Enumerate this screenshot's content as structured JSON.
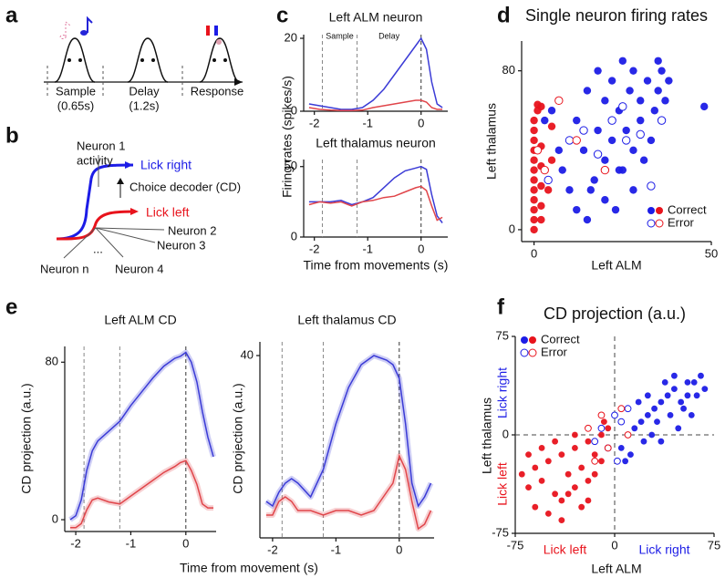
{
  "panel_labels": [
    "a",
    "b",
    "c",
    "d",
    "e",
    "f"
  ],
  "panel_a": {
    "epochs": [
      {
        "label": "Sample",
        "duration": "(0.65s)"
      },
      {
        "label": "Delay",
        "duration": "(1.2s)"
      },
      {
        "label": "Response"
      }
    ]
  },
  "panel_b": {
    "neuron_1": "Neuron 1",
    "activity": "activity",
    "lick_right": "Lick right",
    "decoder": "Choice decoder (CD)",
    "lick_left": "Lick left",
    "neurons": [
      "Neuron 2",
      "Neuron 3",
      "Neuron 4",
      "Neuron n"
    ],
    "ellipsis": "..."
  },
  "chart_data": [
    {
      "type": "line",
      "title": "Left ALM neuron",
      "ylabel": "Firing rates (spikes/s)",
      "annotations": [
        "Sample",
        "Delay"
      ],
      "x": [
        -2.1,
        -1.9,
        -1.7,
        -1.5,
        -1.3,
        -1.1,
        -0.9,
        -0.7,
        -0.5,
        -0.3,
        -0.1,
        0,
        0.1,
        0.2,
        0.3,
        0.4
      ],
      "xlim": [
        -2.2,
        0.5
      ],
      "xticks": [
        -2,
        -1,
        0
      ],
      "ylim": [
        0,
        21
      ],
      "yticks": [
        0,
        20
      ],
      "event_lines": [
        -1.85,
        -1.2,
        0
      ],
      "series": [
        {
          "color": "#3b3bd6",
          "values": [
            2,
            1.5,
            1,
            0.5,
            0.5,
            1,
            3,
            6,
            10,
            14,
            18,
            20,
            17,
            8,
            2,
            1
          ]
        },
        {
          "color": "#e0454a",
          "values": [
            1,
            0.5,
            0.3,
            0.2,
            0.2,
            0.3,
            1,
            1.5,
            2,
            2.5,
            3,
            3,
            2.5,
            1,
            0.5,
            0.5
          ]
        }
      ]
    },
    {
      "type": "line",
      "title": "Left thalamus neuron",
      "xlabel": "Time from movements (s)",
      "x": [
        -2.1,
        -1.9,
        -1.7,
        -1.5,
        -1.3,
        -1.1,
        -0.9,
        -0.7,
        -0.5,
        -0.3,
        -0.1,
        0,
        0.1,
        0.2,
        0.3,
        0.4
      ],
      "xlim": [
        -2.2,
        0.5
      ],
      "xticks": [
        -2,
        -1,
        0
      ],
      "ylim": [
        0,
        55
      ],
      "yticks": [
        0,
        50
      ],
      "event_lines": [
        -1.85,
        -1.2,
        0
      ],
      "series": [
        {
          "color": "#3b3bd6",
          "values": [
            25,
            25,
            25,
            26,
            23,
            25,
            28,
            35,
            42,
            47,
            49,
            50,
            48,
            30,
            15,
            10
          ]
        },
        {
          "color": "#e0454a",
          "values": [
            23,
            25,
            24,
            25,
            22,
            25,
            26,
            28,
            29,
            32,
            35,
            36,
            33,
            22,
            12,
            14
          ]
        }
      ]
    },
    {
      "type": "scatter",
      "title": "Single neuron firing rates",
      "xlabel": "Left ALM",
      "ylabel": "Left thalamus",
      "xlim": [
        -3.5,
        50
      ],
      "xticks": [
        0,
        50
      ],
      "ylim": [
        -6,
        95
      ],
      "yticks": [
        0,
        80
      ],
      "legend": "lower right",
      "series": [
        {
          "name": "Correct",
          "filled": true,
          "groups": [
            {
              "color": "#1c1ce6",
              "x": [
                5,
                8,
                10,
                12,
                14,
                15,
                16,
                18,
                18,
                20,
                20,
                22,
                22,
                24,
                24,
                25,
                26,
                27,
                28,
                28,
                30,
                30,
                32,
                33,
                34,
                35,
                35,
                36,
                37,
                38,
                10,
                12,
                15,
                17,
                20,
                23,
                25,
                28,
                31,
                48,
                3,
                7
              ],
              "y": [
                60,
                30,
                45,
                55,
                40,
                70,
                20,
                50,
                80,
                35,
                65,
                45,
                75,
                30,
                60,
                85,
                50,
                70,
                40,
                80,
                55,
                65,
                75,
                45,
                60,
                85,
                70,
                80,
                65,
                75,
                20,
                10,
                5,
                25,
                15,
                10,
                30,
                20,
                35,
                62,
                55,
                40
              ]
            },
            {
              "color": "#e8131c",
              "x": [
                0,
                0,
                0,
                0,
                0,
                0,
                0,
                0,
                0,
                0,
                0,
                0,
                2,
                2,
                2,
                2,
                2,
                2,
                5,
                5,
                1,
                1,
                4
              ],
              "y": [
                0,
                5,
                10,
                15,
                20,
                25,
                30,
                35,
                40,
                45,
                50,
                55,
                5,
                12,
                22,
                32,
                42,
                62,
                52,
                35,
                63,
                60,
                20
              ]
            }
          ]
        },
        {
          "name": "Error",
          "filled": false,
          "groups": [
            {
              "color": "#1c1ce6",
              "x": [
                4,
                10,
                14,
                18,
                22,
                26,
                30,
                33,
                36,
                25
              ],
              "y": [
                25,
                45,
                50,
                38,
                55,
                45,
                48,
                22,
                55,
                62
              ]
            },
            {
              "color": "#e8131c",
              "x": [
                1,
                3,
                7,
                12,
                20
              ],
              "y": [
                40,
                30,
                65,
                45,
                30
              ]
            }
          ]
        }
      ]
    },
    {
      "type": "line",
      "title": "Left ALM CD",
      "ylabel": "CD projection (a.u.)",
      "xlabel": "Time from movement (s)",
      "band": true,
      "x": [
        -2.1,
        -2,
        -1.9,
        -1.8,
        -1.7,
        -1.6,
        -1.4,
        -1.2,
        -1,
        -0.8,
        -0.6,
        -0.4,
        -0.2,
        -0.1,
        0,
        0.1,
        0.2,
        0.3,
        0.4,
        0.5
      ],
      "xlim": [
        -2.2,
        0.55
      ],
      "xticks": [
        -2,
        -1,
        0
      ],
      "ylim": [
        -6,
        88
      ],
      "yticks": [
        0,
        80
      ],
      "event_lines": [
        -1.85,
        -1.2,
        0
      ],
      "series": [
        {
          "color": "#3b3bd6",
          "values": [
            0,
            2,
            10,
            25,
            35,
            40,
            45,
            50,
            58,
            65,
            72,
            78,
            82,
            83,
            85,
            80,
            70,
            55,
            42,
            32
          ]
        },
        {
          "color": "#e0454a",
          "values": [
            -4,
            -4,
            -2,
            5,
            10,
            11,
            9,
            8,
            12,
            16,
            20,
            24,
            27,
            29,
            30,
            25,
            18,
            8,
            6,
            6
          ]
        }
      ]
    },
    {
      "type": "line",
      "title": "Left thalamus CD",
      "ylabel": "CD projection (a.u.)",
      "band": true,
      "x": [
        -2.1,
        -2,
        -1.9,
        -1.8,
        -1.7,
        -1.6,
        -1.4,
        -1.2,
        -1,
        -0.8,
        -0.6,
        -0.4,
        -0.2,
        -0.1,
        0,
        0.1,
        0.2,
        0.3,
        0.4,
        0.5
      ],
      "xlim": [
        -2.2,
        0.55
      ],
      "xticks": [
        -2,
        -1,
        0
      ],
      "ylim": [
        0,
        43
      ],
      "yticks": [
        40
      ],
      "event_lines": [
        -1.85,
        -1.2,
        0
      ],
      "series": [
        {
          "color": "#3b3bd6",
          "values": [
            8,
            7,
            10,
            12,
            13,
            12,
            9,
            15,
            25,
            33,
            38,
            40,
            39,
            38,
            35,
            25,
            12,
            7,
            9,
            12
          ]
        },
        {
          "color": "#e0454a",
          "values": [
            5,
            5,
            8,
            9,
            8,
            6,
            6,
            5,
            6,
            6,
            5,
            6,
            10,
            12,
            18,
            15,
            8,
            2,
            3,
            6
          ]
        }
      ]
    },
    {
      "type": "scatter",
      "title": "CD projection (a.u.)",
      "xlabel": "Left ALM",
      "ylabel": "Left thalamus",
      "xlim": [
        -75,
        75
      ],
      "xticks": [
        -75,
        0,
        75
      ],
      "ylim": [
        -75,
        75
      ],
      "yticks": [
        -75,
        0,
        75
      ],
      "legend": "upper left",
      "zero_lines": true,
      "quadrant_labels": {
        "y_top": "Lick right",
        "y_bottom": "Lick left",
        "x_left": "Lick left",
        "x_right": "Lick right"
      },
      "series": [
        {
          "name": "Correct",
          "filled": true,
          "groups": [
            {
              "color": "#1c1ce6",
              "x": [
                5,
                10,
                15,
                20,
                25,
                30,
                35,
                40,
                45,
                50,
                55,
                60,
                65,
                68,
                12,
                22,
                32,
                42,
                52,
                62,
                18,
                28,
                38,
                48,
                58,
                8,
                25,
                45,
                35,
                55
              ],
              "y": [
                -10,
                0,
                5,
                10,
                15,
                20,
                25,
                30,
                35,
                25,
                30,
                40,
                45,
                35,
                -15,
                -5,
                10,
                15,
                20,
                30,
                25,
                0,
                40,
                5,
                15,
                -20,
                30,
                45,
                -5,
                40
              ]
            },
            {
              "color": "#e8131c",
              "x": [
                -70,
                -65,
                -60,
                -55,
                -50,
                -45,
                -40,
                -35,
                -30,
                -25,
                -20,
                -15,
                -10,
                -5,
                -60,
                -50,
                -40,
                -30,
                -20,
                -10,
                -55,
                -45,
                -35,
                -25,
                -15,
                -65,
                -40,
                -20,
                -8,
                -30
              ],
              "y": [
                -30,
                -40,
                -25,
                -35,
                -20,
                -45,
                -15,
                -30,
                -10,
                -25,
                -5,
                -15,
                0,
                5,
                -55,
                -60,
                -50,
                -40,
                -35,
                -20,
                -10,
                -5,
                -45,
                -55,
                -30,
                -15,
                -65,
                -50,
                10,
                0
              ]
            }
          ]
        },
        {
          "name": "Error",
          "filled": false,
          "groups": [
            {
              "color": "#1c1ce6",
              "x": [
                -10,
                -5,
                0,
                5,
                10,
                -15,
                2
              ],
              "y": [
                5,
                -10,
                15,
                10,
                20,
                -5,
                -20
              ]
            },
            {
              "color": "#e8131c",
              "x": [
                -20,
                -10,
                -5,
                5,
                10,
                -15
              ],
              "y": [
                5,
                15,
                -10,
                20,
                0,
                -20
              ]
            }
          ]
        }
      ]
    }
  ]
}
